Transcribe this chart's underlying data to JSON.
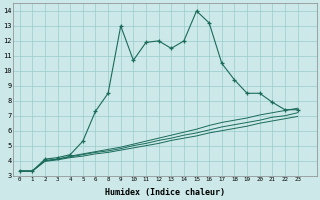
{
  "xlabel": "Humidex (Indice chaleur)",
  "background_color": "#cce8e8",
  "grid_color": "#99cccc",
  "line_color": "#1a6b5a",
  "xlim": [
    -0.5,
    23.5
  ],
  "ylim": [
    3.0,
    14.5
  ],
  "xtick_labels": [
    "0",
    "1",
    "2",
    "3",
    "4",
    "5",
    "6",
    "8",
    "9",
    "10",
    "11",
    "12",
    "13",
    "14",
    "15",
    "16",
    "17",
    "18",
    "19",
    "20",
    "21",
    "22",
    "23"
  ],
  "yticks": [
    3,
    4,
    5,
    6,
    7,
    8,
    9,
    10,
    11,
    12,
    13,
    14
  ],
  "series": [
    {
      "x": [
        0,
        1,
        2,
        3,
        4,
        5,
        6,
        7,
        8,
        9,
        10,
        11,
        12,
        13,
        14,
        15,
        16,
        17,
        18,
        19,
        20,
        21,
        22
      ],
      "y": [
        3.3,
        3.3,
        4.1,
        4.2,
        4.4,
        5.3,
        7.3,
        8.5,
        13.0,
        10.7,
        11.9,
        12.0,
        11.5,
        12.0,
        14.0,
        13.2,
        10.5,
        9.4,
        8.5,
        8.5,
        7.9,
        7.4,
        7.4
      ],
      "marker": true
    },
    {
      "x": [
        0,
        1,
        2,
        3,
        4,
        5,
        6,
        7,
        8,
        9,
        10,
        11,
        12,
        13,
        14,
        15,
        16,
        17,
        18,
        19,
        20,
        21,
        22
      ],
      "y": [
        3.3,
        3.3,
        4.0,
        4.1,
        4.3,
        4.45,
        4.6,
        4.75,
        4.9,
        5.1,
        5.3,
        5.5,
        5.7,
        5.9,
        6.1,
        6.35,
        6.55,
        6.7,
        6.85,
        7.05,
        7.2,
        7.35,
        7.5
      ],
      "marker": false
    },
    {
      "x": [
        0,
        1,
        2,
        3,
        4,
        5,
        6,
        7,
        8,
        9,
        10,
        11,
        12,
        13,
        14,
        15,
        16,
        17,
        18,
        19,
        20,
        21,
        22
      ],
      "y": [
        3.3,
        3.3,
        4.0,
        4.1,
        4.25,
        4.4,
        4.55,
        4.65,
        4.8,
        5.0,
        5.15,
        5.35,
        5.5,
        5.7,
        5.85,
        6.05,
        6.25,
        6.4,
        6.55,
        6.7,
        6.9,
        7.0,
        7.2
      ],
      "marker": false
    },
    {
      "x": [
        0,
        1,
        2,
        3,
        4,
        5,
        6,
        7,
        8,
        9,
        10,
        11,
        12,
        13,
        14,
        15,
        16,
        17,
        18,
        19,
        20,
        21,
        22
      ],
      "y": [
        3.3,
        3.3,
        3.95,
        4.05,
        4.2,
        4.3,
        4.45,
        4.55,
        4.7,
        4.85,
        5.0,
        5.15,
        5.35,
        5.5,
        5.65,
        5.85,
        6.0,
        6.15,
        6.3,
        6.5,
        6.65,
        6.8,
        6.95
      ],
      "marker": false
    }
  ]
}
